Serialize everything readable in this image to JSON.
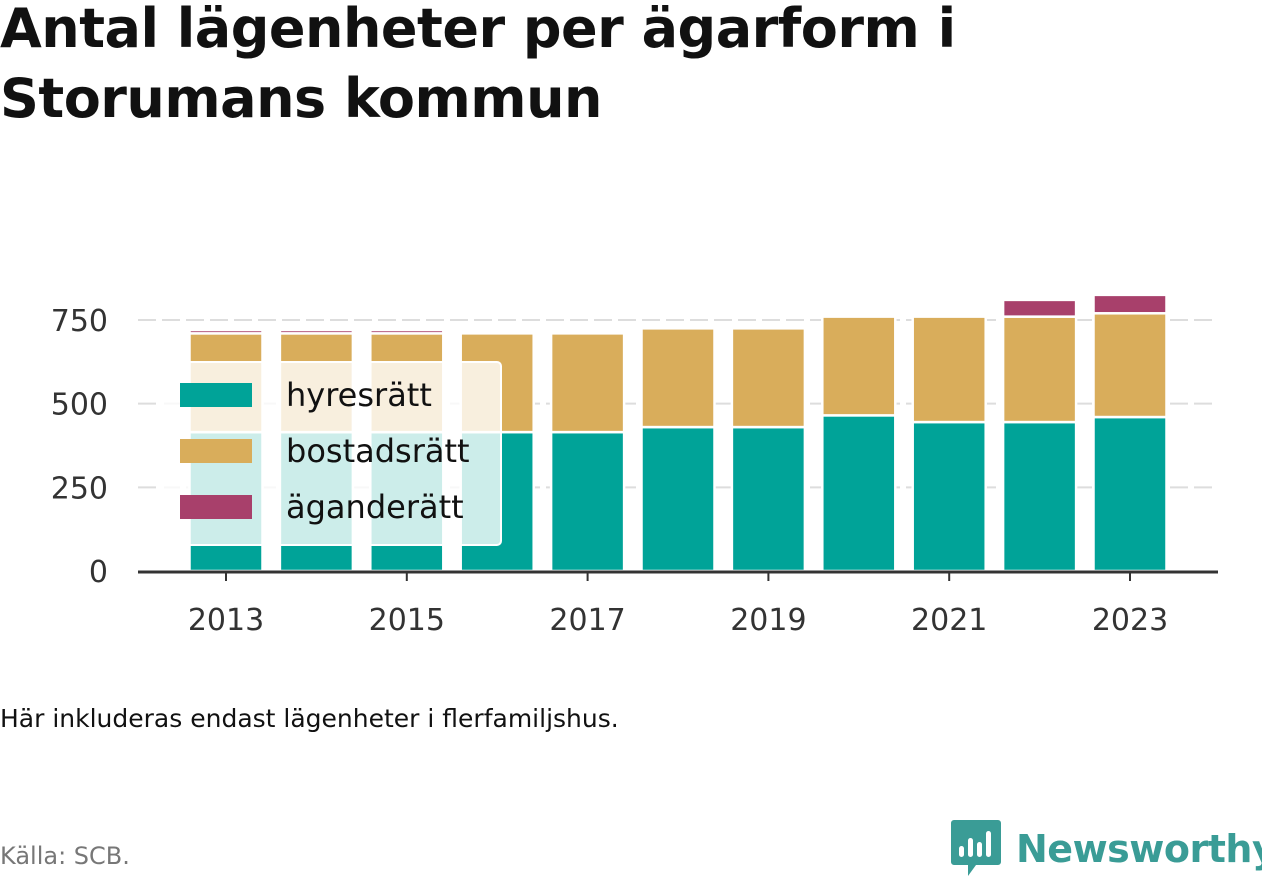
{
  "header": {
    "title": "Antal lägenheter per ägarform i Storumans kommun"
  },
  "footer": {
    "note": "Här inkluderas endast lägenheter i flerfamiljshus.",
    "source": "Källa: SCB.",
    "brand": "Newsworthy"
  },
  "colors": {
    "hyresratt": "#00a398",
    "bostadsratt": "#d9ad5b",
    "aganderatt": "#a8406b",
    "grid": "#dddddd",
    "axis": "#333333",
    "brand": "#3a9c96"
  },
  "chart_data": {
    "type": "bar",
    "stacked": true,
    "categories": [
      "2013",
      "2014",
      "2015",
      "2016",
      "2017",
      "2018",
      "2019",
      "2020",
      "2021",
      "2022",
      "2023"
    ],
    "x_tick_labels": [
      "2013",
      "2015",
      "2017",
      "2019",
      "2021",
      "2023"
    ],
    "series": [
      {
        "name": "hyresrätt",
        "color": "#00a398",
        "values": [
          415,
          415,
          415,
          415,
          415,
          430,
          430,
          465,
          445,
          445,
          460
        ]
      },
      {
        "name": "bostadsrätt",
        "color": "#d9ad5b",
        "values": [
          295,
          295,
          295,
          295,
          295,
          295,
          295,
          295,
          315,
          315,
          310
        ]
      },
      {
        "name": "äganderätt",
        "color": "#a8406b",
        "values": [
          10,
          10,
          10,
          0,
          0,
          0,
          0,
          0,
          0,
          50,
          55
        ]
      }
    ],
    "y_ticks": [
      0,
      250,
      500,
      750
    ],
    "ylim": [
      0,
      840
    ],
    "grid": true,
    "legend_position": "top-left inside plot"
  }
}
